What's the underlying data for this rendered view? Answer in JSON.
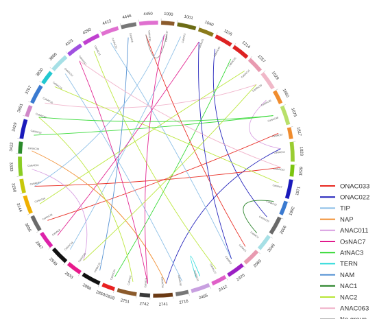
{
  "diagram": {
    "segments": [
      {
        "label": "1000",
        "color": "#8B5A2B"
      },
      {
        "label": "1001",
        "color": "#6B6B14"
      },
      {
        "label": "1040",
        "color": "#8B7A1A"
      },
      {
        "label": "1106",
        "color": "#DD2222"
      },
      {
        "label": "1214",
        "color": "#DD2222"
      },
      {
        "label": "1257",
        "color": "#E89AB0"
      },
      {
        "label": "1529",
        "color": "#F0B8C8"
      },
      {
        "label": "1660",
        "color": "#F08C2E"
      },
      {
        "label": "1675",
        "color": "#B8E06A"
      },
      {
        "label": "1817",
        "color": "#F08C2E"
      },
      {
        "label": "1828",
        "color": "#9ACD32"
      },
      {
        "label": "1829",
        "color": "#7CC40F"
      },
      {
        "label": "1971",
        "color": "#1A1ABB"
      },
      {
        "label": "1992",
        "color": "#3A7AD0"
      },
      {
        "label": "2006",
        "color": "#6A6A6A"
      },
      {
        "label": "2046",
        "color": "#A6E0E6"
      },
      {
        "label": "2069",
        "color": "#E89AB0"
      },
      {
        "label": "2370",
        "color": "#9B1FC4"
      },
      {
        "label": "2412",
        "color": "#E060C8"
      },
      {
        "label": "2465",
        "color": "#C8A0E0"
      },
      {
        "label": "2716",
        "color": "#777777"
      },
      {
        "label": "2741",
        "color": "#6B3A14"
      },
      {
        "label": "2742",
        "color": "#3A3A3A"
      },
      {
        "label": "2751",
        "color": "#8B5A2B"
      },
      {
        "label": "2850/2828",
        "color": "#E82020"
      },
      {
        "label": "2868",
        "color": "#111111"
      },
      {
        "label": "2933",
        "color": "#E81A8C"
      },
      {
        "label": "2939",
        "color": "#111111"
      },
      {
        "label": "2947",
        "color": "#DD22AA"
      },
      {
        "label": "3086",
        "color": "#6A6A6A"
      },
      {
        "label": "3144",
        "color": "#F0B000"
      },
      {
        "label": "3250",
        "color": "#C8C80A"
      },
      {
        "label": "3333",
        "color": "#8ACD22"
      },
      {
        "label": "3422",
        "color": "#2A8A2A"
      },
      {
        "label": "3429",
        "color": "#1A1ABB"
      },
      {
        "label": "3651",
        "color": "#D088C8"
      },
      {
        "label": "3707",
        "color": "#3A7AD0"
      },
      {
        "label": "3820",
        "color": "#22C8D0"
      },
      {
        "label": "3866",
        "color": "#A6E0E6"
      },
      {
        "label": "4101",
        "color": "#A050E0"
      },
      {
        "label": "4250",
        "color": "#C040D0"
      },
      {
        "label": "4413",
        "color": "#E070D0"
      },
      {
        "label": "4446",
        "color": "#777777"
      },
      {
        "label": "4450",
        "color": "#E070D0"
      }
    ],
    "genes": [
      "CaNAC17",
      "CaNAC2",
      "CaNAC31",
      "CaNAC45",
      "CaNAC35",
      "CaNAC14",
      "CaNAC29",
      "CaNAC36",
      "CaNAC48",
      "CaNAC37",
      "CaNAC42",
      "CaNAC32",
      "CaNAC7",
      "CaNAC22",
      "CaNAC23",
      "CaNAC4",
      "CaNAC1",
      "CaNAC5",
      "CaNAC27",
      "CaNAC21",
      "CaNAC40",
      "CaNAC34",
      "CaNAC9",
      "CaNAC3",
      "CaNAC24",
      "CaNAC25",
      "CaNAC26",
      "CaNAC43",
      "CaNAC8",
      "CaNAC38",
      "CaNAC44",
      "CaNAC41",
      "CaNAC18",
      "CaNAC39",
      "CaNAC33",
      "CaNAC30",
      "CaNAC10",
      "CaNAC16",
      "CaNAC12",
      "CaNAC47",
      "CaNAC11",
      "CaNAC20",
      "CaNAC6",
      "CaNAC19"
    ]
  },
  "legend": {
    "items": [
      {
        "label": "ONAC033",
        "color": "#E8271E"
      },
      {
        "label": "ONAC022",
        "color": "#1A1AB8"
      },
      {
        "label": "TIP",
        "color": "#88BDE6"
      },
      {
        "label": "NAP",
        "color": "#F08C2E"
      },
      {
        "label": "ANAC011",
        "color": "#D79CE0"
      },
      {
        "label": "OsNAC7",
        "color": "#E01A8C"
      },
      {
        "label": "AtNAC3",
        "color": "#2ED82E"
      },
      {
        "label": "TERN",
        "color": "#22D8D8"
      },
      {
        "label": "NAM",
        "color": "#4A8AD0"
      },
      {
        "label": "NAC1",
        "color": "#1A7A1A"
      },
      {
        "label": "NAC2",
        "color": "#B8E634"
      },
      {
        "label": "ANAC063",
        "color": "#F0B0C8"
      },
      {
        "label": "No group",
        "color": "#8A8A8A"
      }
    ]
  },
  "links": [
    {
      "from": 1,
      "to": 27,
      "color": "#88BDE6"
    },
    {
      "from": 2,
      "to": 28,
      "color": "#E01A8C"
    },
    {
      "from": 3,
      "to": 14,
      "color": "#1A1AB8"
    },
    {
      "from": 4,
      "to": 24,
      "color": "#2ED82E"
    },
    {
      "from": 5,
      "to": 30,
      "color": "#B8E634"
    },
    {
      "from": 6,
      "to": 36,
      "color": "#F0B0C8"
    },
    {
      "from": 7,
      "to": 10,
      "color": "#D79CE0"
    },
    {
      "from": 8,
      "to": 34,
      "color": "#2ED82E"
    },
    {
      "from": 9,
      "to": 29,
      "color": "#E8271E"
    },
    {
      "from": 10,
      "to": 21,
      "color": "#1A1AB8"
    },
    {
      "from": 11,
      "to": 31,
      "color": "#E8271E"
    },
    {
      "from": 12,
      "to": 37,
      "color": "#B8E634"
    },
    {
      "from": 13,
      "to": 15,
      "color": "#1A7A1A"
    },
    {
      "from": 16,
      "to": 43,
      "color": "#E8271E"
    },
    {
      "from": 17,
      "to": 41,
      "color": "#88BDE6"
    },
    {
      "from": 18,
      "to": 40,
      "color": "#B8E634"
    },
    {
      "from": 19,
      "to": 19.6,
      "color": "#22D8D8"
    },
    {
      "from": 20,
      "to": 38,
      "color": "#88BDE6"
    },
    {
      "from": 21,
      "to": 33,
      "color": "#F08C2E"
    },
    {
      "from": 22,
      "to": 39,
      "color": "#E01A8C"
    },
    {
      "from": 23,
      "to": 35,
      "color": "#B8E634"
    },
    {
      "from": 25,
      "to": 42,
      "color": "#4A8AD0"
    },
    {
      "from": 26,
      "to": 32,
      "color": "#D79CE0"
    },
    {
      "from": 0,
      "to": 31,
      "color": "#88BDE6"
    },
    {
      "from": 43,
      "to": 0.5,
      "color": "#8A8A8A"
    },
    {
      "from": 44,
      "to": 22,
      "color": "#E01A8C"
    },
    {
      "from": 2,
      "to": 17,
      "color": "#1A1AB8"
    },
    {
      "from": 6,
      "to": 26,
      "color": "#B8E634"
    },
    {
      "from": 39,
      "to": 11,
      "color": "#F0B0C8"
    },
    {
      "from": 35,
      "to": 8,
      "color": "#2ED82E"
    }
  ]
}
